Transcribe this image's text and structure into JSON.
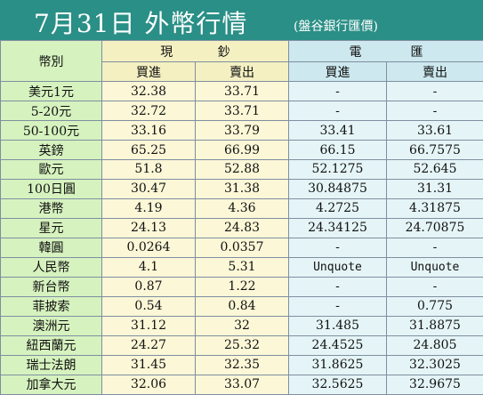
{
  "title": {
    "main": "7月31日 外幣行情",
    "source": "(盤谷銀行匯價)"
  },
  "header": {
    "currency_col": "幣別",
    "cash_group": [
      "現",
      "鈔"
    ],
    "wire_group": [
      "電",
      "匯"
    ],
    "buy": "買進",
    "sell": "賣出"
  },
  "rows": [
    {
      "name": "美元1元",
      "cash_buy": "32.38",
      "cash_sell": "33.71",
      "wire_buy": "-",
      "wire_sell": "-"
    },
    {
      "name": "5-20元",
      "cash_buy": "32.72",
      "cash_sell": "33.71",
      "wire_buy": "-",
      "wire_sell": "-"
    },
    {
      "name": "50-100元",
      "cash_buy": "33.16",
      "cash_sell": "33.79",
      "wire_buy": "33.41",
      "wire_sell": "33.61"
    },
    {
      "name": "英鎊",
      "cash_buy": "65.25",
      "cash_sell": "66.99",
      "wire_buy": "66.15",
      "wire_sell": "66.7575"
    },
    {
      "name": "歐元",
      "cash_buy": "51.8",
      "cash_sell": "52.88",
      "wire_buy": "52.1275",
      "wire_sell": "52.645"
    },
    {
      "name": "100日圓",
      "cash_buy": "30.47",
      "cash_sell": "31.38",
      "wire_buy": "30.84875",
      "wire_sell": "31.31"
    },
    {
      "name": "港幣",
      "cash_buy": "4.19",
      "cash_sell": "4.36",
      "wire_buy": "4.2725",
      "wire_sell": "4.31875"
    },
    {
      "name": "星元",
      "cash_buy": "24.13",
      "cash_sell": "24.83",
      "wire_buy": "24.34125",
      "wire_sell": "24.70875"
    },
    {
      "name": "韓圓",
      "cash_buy": "0.0264",
      "cash_sell": "0.0357",
      "wire_buy": "-",
      "wire_sell": "-"
    },
    {
      "name": "人民幣",
      "cash_buy": "4.1",
      "cash_sell": "5.31",
      "wire_buy": "Unquote",
      "wire_sell": "Unquote"
    },
    {
      "name": "新台幣",
      "cash_buy": "0.87",
      "cash_sell": "1.22",
      "wire_buy": "-",
      "wire_sell": "-"
    },
    {
      "name": "菲披索",
      "cash_buy": "0.54",
      "cash_sell": "0.84",
      "wire_buy": "-",
      "wire_sell": "0.775"
    },
    {
      "name": "澳洲元",
      "cash_buy": "31.12",
      "cash_sell": "32",
      "wire_buy": "31.485",
      "wire_sell": "31.8875"
    },
    {
      "name": "紐西蘭元",
      "cash_buy": "24.27",
      "cash_sell": "25.32",
      "wire_buy": "24.4525",
      "wire_sell": "24.805"
    },
    {
      "name": "瑞士法朗",
      "cash_buy": "31.45",
      "cash_sell": "32.35",
      "wire_buy": "31.8625",
      "wire_sell": "32.3025"
    },
    {
      "name": "加拿大元",
      "cash_buy": "32.06",
      "cash_sell": "33.07",
      "wire_buy": "32.5625",
      "wire_sell": "32.9675"
    }
  ]
}
